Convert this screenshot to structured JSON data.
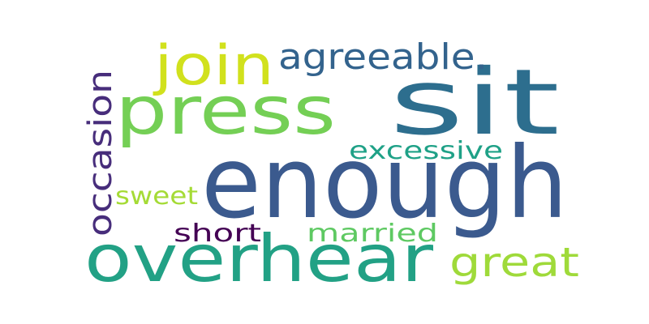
{
  "words": [
    {
      "id": "sit",
      "text": "sit",
      "color": "#2d6e8e"
    },
    {
      "id": "enough",
      "text": "enough",
      "color": "#3b5a8e"
    },
    {
      "id": "overhear",
      "text": "overhear",
      "color": "#22a185"
    },
    {
      "id": "press",
      "text": "press",
      "color": "#74cf55"
    },
    {
      "id": "join",
      "text": "join",
      "color": "#d1e11d"
    },
    {
      "id": "agreeable",
      "text": "agreeable.",
      "color": "#33638d"
    },
    {
      "id": "occasion",
      "text": "occasion",
      "color": "#472d7b"
    },
    {
      "id": "great",
      "text": "great",
      "color": "#9fda3a"
    },
    {
      "id": "excessive",
      "text": "excessive",
      "color": "#1fa187"
    },
    {
      "id": "sweet",
      "text": "sweet",
      "color": "#a5db36"
    },
    {
      "id": "married",
      "text": "married",
      "color": "#5ec962"
    },
    {
      "id": "short",
      "text": "short",
      "color": "#440154"
    }
  ]
}
